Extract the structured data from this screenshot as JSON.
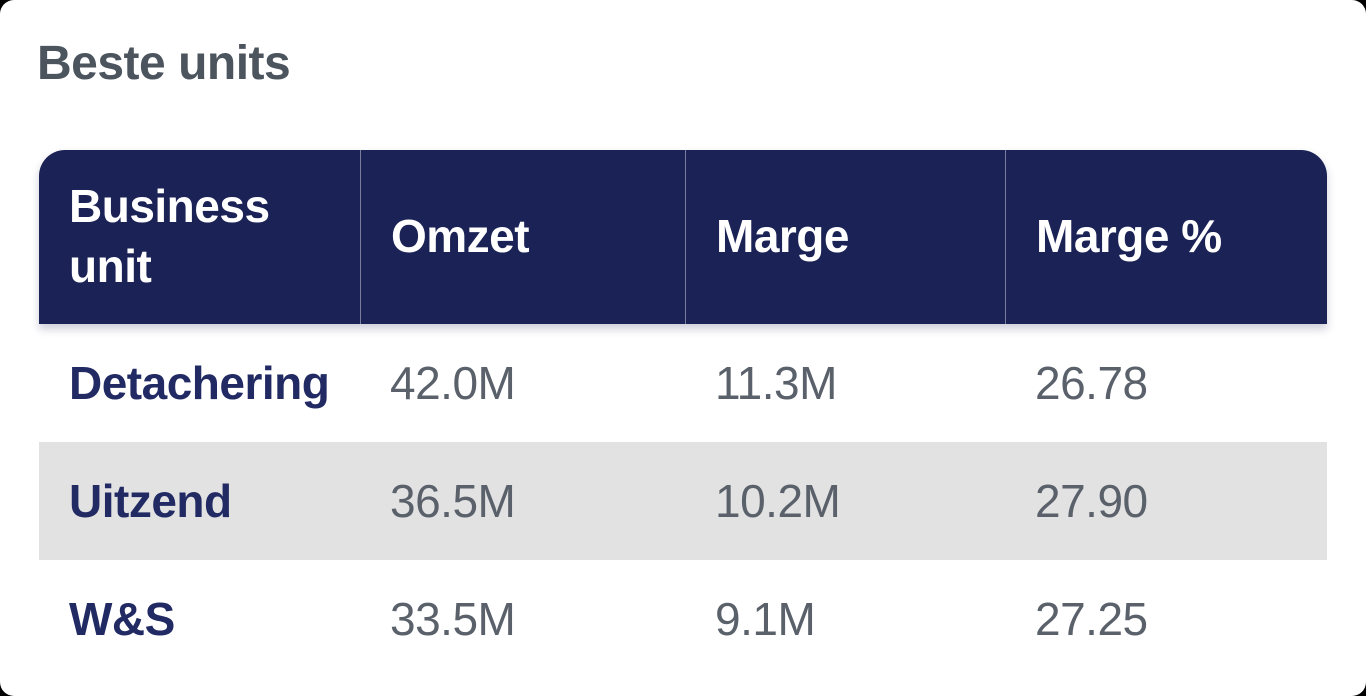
{
  "page": {
    "title": "Beste units"
  },
  "colors": {
    "page_bg": "#000000",
    "card_bg": "#ffffff",
    "title_text": "#4c545e",
    "header_bg": "#1b2255",
    "header_text": "#ffffff",
    "header_separator": "rgba(255,255,255,0.42)",
    "label_text": "#212a63",
    "value_text": "#5a616b",
    "zebra_row_bg": "#e2e2e2"
  },
  "table": {
    "columns": [
      "Business unit",
      "Omzet",
      "Marge",
      "Marge %"
    ],
    "rows": [
      {
        "business_unit": "Detachering",
        "omzet": "42.0M",
        "marge": "11.3M",
        "marge_pct": "26.78"
      },
      {
        "business_unit": "Uitzend",
        "omzet": "36.5M",
        "marge": "10.2M",
        "marge_pct": "27.90"
      },
      {
        "business_unit": "W&S",
        "omzet": "33.5M",
        "marge": "9.1M",
        "marge_pct": "27.25"
      }
    ]
  },
  "chart_data": {
    "type": "table",
    "title": "Beste units",
    "columns": [
      "Business unit",
      "Omzet",
      "Marge",
      "Marge %"
    ],
    "rows": [
      [
        "Detachering",
        "42.0M",
        "11.3M",
        "26.78"
      ],
      [
        "Uitzend",
        "36.5M",
        "10.2M",
        "27.90"
      ],
      [
        "W&S",
        "33.5M",
        "9.1M",
        "27.25"
      ]
    ]
  }
}
